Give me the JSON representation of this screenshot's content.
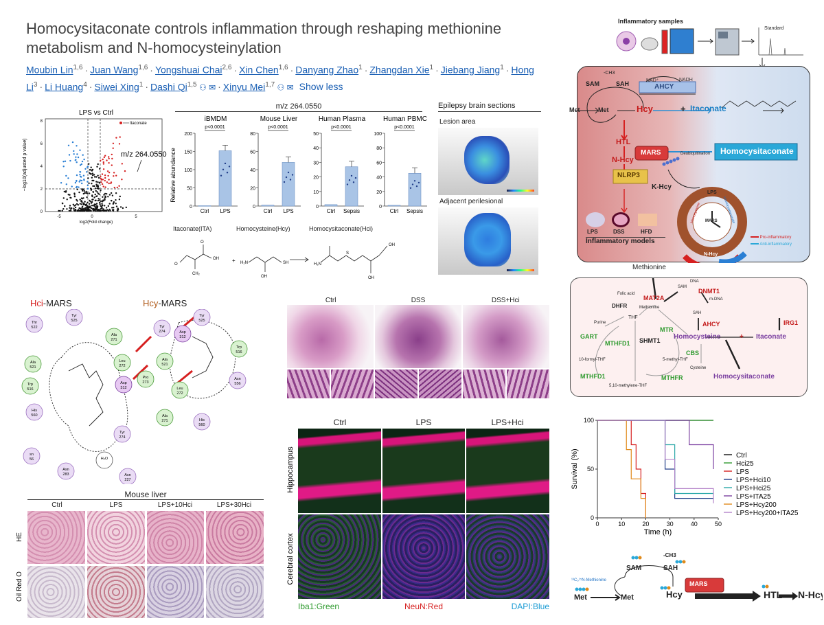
{
  "paper": {
    "title_line1": "Homocysitaconate controls inflammation through reshaping methionine",
    "title_line2": "metabolism and N-homocysteinylation",
    "authors": [
      {
        "name": "Moubin Lin",
        "aff": "1,6",
        "corresponding": false
      },
      {
        "name": "Juan Wang",
        "aff": "1,6",
        "corresponding": false
      },
      {
        "name": "Yongshuai Chai",
        "aff": "2,6",
        "corresponding": false
      },
      {
        "name": "Xin Chen",
        "aff": "1,6",
        "corresponding": false
      },
      {
        "name": "Danyang Zhao",
        "aff": "1",
        "corresponding": false
      },
      {
        "name": "Zhangdan Xie",
        "aff": "1",
        "corresponding": false
      },
      {
        "name": "Jiebang Jiang",
        "aff": "1",
        "corresponding": false
      },
      {
        "name": "Hong Li",
        "aff": "3",
        "corresponding": false
      },
      {
        "name": "Li Huang",
        "aff": "4",
        "corresponding": false
      },
      {
        "name": "Siwei Xing",
        "aff": "1",
        "corresponding": false
      },
      {
        "name": "Dashi Qi",
        "aff": "1,5",
        "corresponding": true
      },
      {
        "name": "Xinyu Mei",
        "aff": "1,7",
        "corresponding": true
      }
    ],
    "show_less": "Show less"
  },
  "volcano": {
    "title": "LPS vs Ctrl",
    "xlabel": "log2(Fold change)",
    "ylabel": "−log10(adjusted p value)",
    "annotation": "m/z 264.0550",
    "itaconate_label": "Itaconate",
    "xticks": [
      "-5",
      "0",
      "5"
    ],
    "yticks": [
      "0",
      "2",
      "4",
      "6",
      "8"
    ]
  },
  "bars": {
    "header": "m/z 264.0550",
    "ylabel": "Relative abundance",
    "pval": "p<0.0001",
    "formula_labels": [
      "Itaconate(ITA)",
      "Homocysteine(Hcy)",
      "Homocysitaconate(Hci)"
    ]
  },
  "chart_data": [
    {
      "type": "bar",
      "title": "iBMDM",
      "categories": [
        "Ctrl",
        "LPS"
      ],
      "values": [
        1,
        152
      ],
      "ylim": [
        0,
        200
      ],
      "yticks": [
        "0",
        "50",
        "100",
        "150",
        "200"
      ]
    },
    {
      "type": "bar",
      "title": "Mouse Liver",
      "categories": [
        "Ctrl",
        "LPS"
      ],
      "values": [
        1,
        48
      ],
      "ylim": [
        0,
        80
      ],
      "yticks": [
        "0",
        "20",
        "40",
        "60",
        "80"
      ]
    },
    {
      "type": "bar",
      "title": "Human Plasma",
      "categories": [
        "Ctrl",
        "Sepsis"
      ],
      "values": [
        1,
        27
      ],
      "ylim": [
        0,
        50
      ],
      "yticks": [
        "0",
        "10",
        "20",
        "30",
        "40",
        "50"
      ]
    },
    {
      "type": "bar",
      "title": "Human PBMC",
      "categories": [
        "Ctrl",
        "Sepsis"
      ],
      "values": [
        1,
        45
      ],
      "ylim": [
        0,
        100
      ],
      "yticks": [
        "0",
        "20",
        "40",
        "60",
        "80",
        "100"
      ]
    },
    {
      "type": "line",
      "xlabel": "Time (h)",
      "ylabel": "Survival (%)",
      "xlim": [
        0,
        50
      ],
      "ylim": [
        0,
        100
      ],
      "xticks": [
        "0",
        "10",
        "20",
        "30",
        "40",
        "50"
      ],
      "yticks": [
        "0",
        "50",
        "100"
      ],
      "series": [
        {
          "name": "Ctrl",
          "color": "#111111",
          "x": [
            0,
            48
          ],
          "y": [
            100,
            100
          ]
        },
        {
          "name": "Hci25",
          "color": "#2e9a2e",
          "x": [
            0,
            48
          ],
          "y": [
            100,
            100
          ]
        },
        {
          "name": "LPS",
          "color": "#d62020",
          "x": [
            0,
            10,
            14,
            16,
            18,
            20
          ],
          "y": [
            100,
            100,
            75,
            50,
            25,
            0
          ]
        },
        {
          "name": "LPS+Hci10",
          "color": "#1f3c88",
          "x": [
            0,
            26,
            28,
            32,
            48
          ],
          "y": [
            100,
            100,
            50,
            20,
            20
          ]
        },
        {
          "name": "LPS+Hci25",
          "color": "#2aa8a8",
          "x": [
            0,
            26,
            28,
            32,
            48
          ],
          "y": [
            100,
            100,
            75,
            25,
            25
          ]
        },
        {
          "name": "LPS+ITA25",
          "color": "#7a3fa0",
          "x": [
            0,
            34,
            38,
            48
          ],
          "y": [
            100,
            100,
            75,
            50
          ]
        },
        {
          "name": "LPS+Hcy200",
          "color": "#e08a1a",
          "x": [
            0,
            10,
            12,
            14,
            18,
            20
          ],
          "y": [
            100,
            100,
            70,
            40,
            20,
            0
          ]
        },
        {
          "name": "LPS+Hcy200+ITA25",
          "color": "#b483c9",
          "x": [
            0,
            24,
            28,
            32,
            48
          ],
          "y": [
            100,
            100,
            60,
            30,
            15
          ]
        }
      ]
    }
  ],
  "epilepsy": {
    "title": "Epilepsy brain sections",
    "lesion": "Lesion area",
    "adjacent": "Adjacent perilesional"
  },
  "top_right": {
    "inflammatory_samples": "Inflammatory samples",
    "standard": "Standard",
    "nodes": {
      "ch3": "-CH3",
      "sam": "SAM",
      "sah": "SAH",
      "nad": "NAD⁺",
      "nadh": "NADH",
      "ahcy": "AHCY",
      "met_left": "Met",
      "met": "Met",
      "hcy": "Hcy",
      "plus": "+",
      "itaconate": "Itaconate",
      "mars": "MARS",
      "homocysitaconate": "Homocysitaconate",
      "htl": "HTL",
      "nhcy": "N-Hcy",
      "deubiq": "Deubiquitination",
      "nlrp3": "NLRP3",
      "khcy": "K-Hcy"
    },
    "models": [
      "LPS",
      "DSS",
      "HFD"
    ],
    "models_title": "Inflammatory models",
    "wheel": {
      "lps": "LPS",
      "mars": "MARS",
      "nhcy": "N-Hcy",
      "hcy": "Homocysteine",
      "hci": "Homocysitaconate"
    },
    "legend_pro": "Pro-inflammatory",
    "legend_anti": "Anti-inflammatory"
  },
  "pathway": {
    "methionine_top": "Methionine",
    "folic": "Folic acid",
    "dhfr": "DHFR",
    "thf": "THF",
    "purine": "Purine",
    "gart": "GART",
    "mthfd1a": "MTHFD1",
    "shmt1": "SHMT1",
    "mtr": "MTR",
    "formyl": "10-formyl-THF",
    "methyl": "5-methyl-THF",
    "methylene": "5,10-methylene-THF",
    "mthfd1b": "MTHFD1",
    "mthfr": "MTHFR",
    "mat2a": "MAT2A",
    "methionine": "Methionine",
    "sam": "SAM",
    "dna": "DNA",
    "dnmt1": "DNMT1",
    "mdna": "m-DNA",
    "sah": "SAH",
    "ahcy": "AHCY",
    "homocysteine": "Homocysteine",
    "plus": "+",
    "itaconate": "Itaconate",
    "irg1": "IRG1",
    "cbs": "CBS",
    "cysteine": "Cysteine",
    "homocysitaconate": "Homocysitaconate"
  },
  "docking": {
    "hci_prefix": "Hci",
    "hci_suffix": "-MARS",
    "hcy_prefix": "Hcy",
    "hcy_suffix": "-MARS",
    "left_residues": [
      {
        "t": "Thr",
        "n": "522"
      },
      {
        "t": "Tyr",
        "n": "525"
      },
      {
        "t": "Ala",
        "n": "271"
      },
      {
        "t": "Ala",
        "n": "521"
      },
      {
        "t": "Leu",
        "n": "272"
      },
      {
        "t": "His",
        "n": "560"
      },
      {
        "t": "Asp",
        "n": "312"
      },
      {
        "t": "Trp",
        "n": "516"
      },
      {
        "t": "Pro",
        "n": "273"
      },
      {
        "t": "sn",
        "n": "56"
      },
      {
        "t": "Tyr",
        "n": "274"
      },
      {
        "t": "Asn",
        "n": "283"
      },
      {
        "t": "Asn",
        "n": "227"
      },
      {
        "t": "H₂O",
        "n": ""
      }
    ],
    "right_residues": [
      {
        "t": "Tyr",
        "n": "525"
      },
      {
        "t": "Tyr",
        "n": "274"
      },
      {
        "t": "Asp",
        "n": "312"
      },
      {
        "t": "Ala",
        "n": "521"
      },
      {
        "t": "Trp",
        "n": "516"
      },
      {
        "t": "Leu",
        "n": "272"
      },
      {
        "t": "Asn",
        "n": "556"
      },
      {
        "t": "Ala",
        "n": "271"
      },
      {
        "t": "His",
        "n": "560"
      }
    ]
  },
  "histology": {
    "cols": [
      "Ctrl",
      "DSS",
      "DSS+Hci"
    ]
  },
  "liver": {
    "title": "Mouse liver",
    "cols": [
      "Ctrl",
      "LPS",
      "LPS+10Hci",
      "LPS+30Hci"
    ],
    "rows": [
      "HE",
      "Oil Red O"
    ]
  },
  "brain": {
    "cols": [
      "Ctrl",
      "LPS",
      "LPS+Hci"
    ],
    "rows": [
      "Hippocampus",
      "Cerebral cortex"
    ],
    "stain1": "Iba1:Green",
    "stain2": "NeuN:Red",
    "stain3": "DAPI:Blue"
  },
  "bottom_right": {
    "isotope": "¹³C₅¹⁵N-Methionine",
    "ch3": "-CH3",
    "sam": "SAM",
    "sah": "SAH",
    "met1": "Met",
    "met2": "Met",
    "hcy": "Hcy",
    "mars": "MARS",
    "htl": "HTL",
    "nhcy": "N-Hcy"
  }
}
